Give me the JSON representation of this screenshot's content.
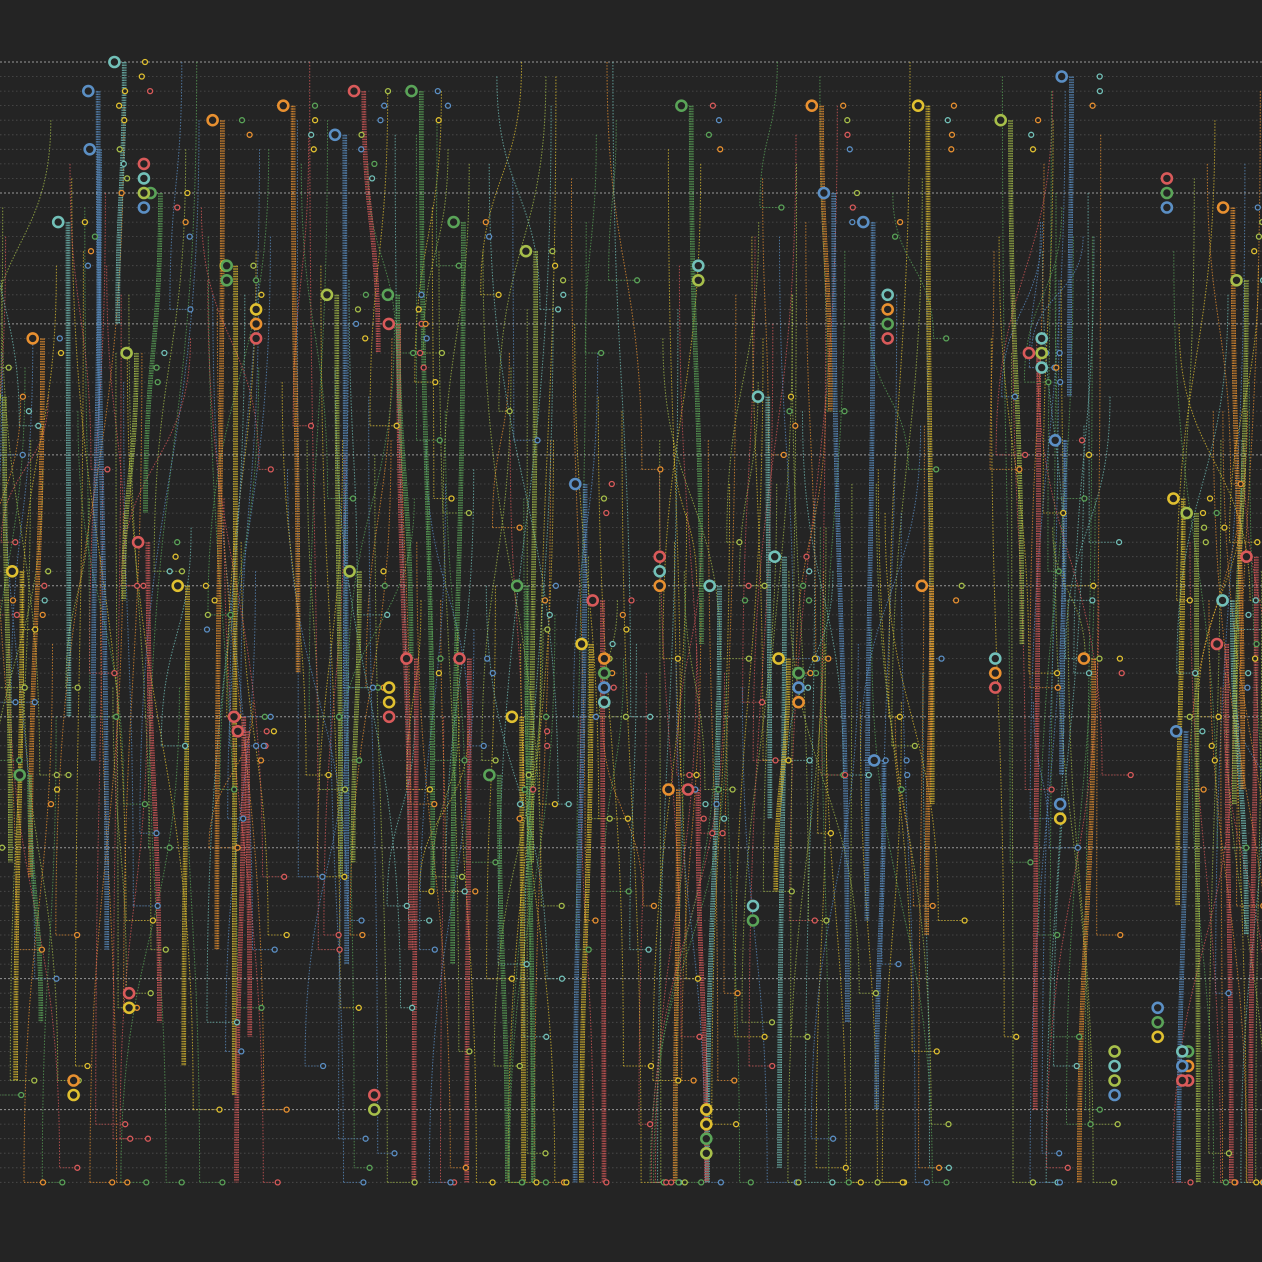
{
  "palette": {
    "background": "#242424",
    "gridline": "#bdbdbd",
    "colors": [
      "#e0c030",
      "#e89030",
      "#d95a5a",
      "#5b8fc4",
      "#72c0b8",
      "#5aa458",
      "#a7bf4a"
    ]
  },
  "visualization": {
    "kind": "generative-dependency-lines",
    "text": []
  }
}
